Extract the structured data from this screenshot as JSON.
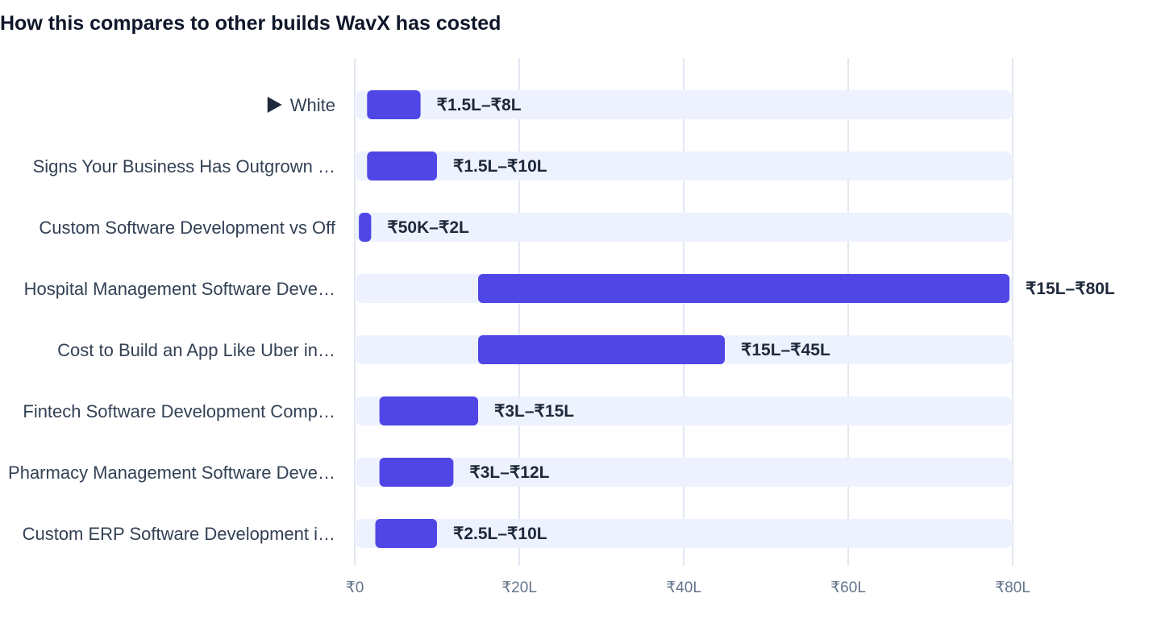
{
  "chart_data": {
    "type": "bar",
    "orientation": "horizontal",
    "subtype": "range",
    "title": "How this compares to other builds WavX has costed",
    "xlabel": "",
    "ylabel": "",
    "xlim": [
      0,
      80
    ],
    "x_unit": "lakh INR",
    "grid": true,
    "legend": "none",
    "colors": {
      "bar": "#4f46e5",
      "track": "#eef2ff",
      "grid": "#e2e8f0"
    },
    "ticks": [
      {
        "value": 0,
        "label": "₹0"
      },
      {
        "value": 20,
        "label": "₹20L"
      },
      {
        "value": 40,
        "label": "₹40L"
      },
      {
        "value": 60,
        "label": "₹60L"
      },
      {
        "value": 80,
        "label": "₹80L"
      }
    ],
    "rows": [
      {
        "category": "White",
        "low": 1.5,
        "high": 8,
        "range_label": "₹1.5L–₹8L",
        "current": true,
        "marker_icon": "triangle-right-icon"
      },
      {
        "category": "Signs Your Business Has Outgrown …",
        "low": 1.5,
        "high": 10,
        "range_label": "₹1.5L–₹10L"
      },
      {
        "category": "Custom Software Development vs Off",
        "low": 0.5,
        "high": 2,
        "range_label": "₹50K–₹2L"
      },
      {
        "category": "Hospital Management Software Deve…",
        "low": 15,
        "high": 80,
        "range_label": "₹15L–₹80L"
      },
      {
        "category": "Cost to Build an App Like Uber in…",
        "low": 15,
        "high": 45,
        "range_label": "₹15L–₹45L"
      },
      {
        "category": "Fintech Software Development Comp…",
        "low": 3,
        "high": 15,
        "range_label": "₹3L–₹15L"
      },
      {
        "category": "Pharmacy Management Software Deve…",
        "low": 3,
        "high": 12,
        "range_label": "₹3L–₹12L"
      },
      {
        "category": "Custom ERP Software Development i…",
        "low": 2.5,
        "high": 10,
        "range_label": "₹2.5L–₹10L"
      }
    ]
  }
}
